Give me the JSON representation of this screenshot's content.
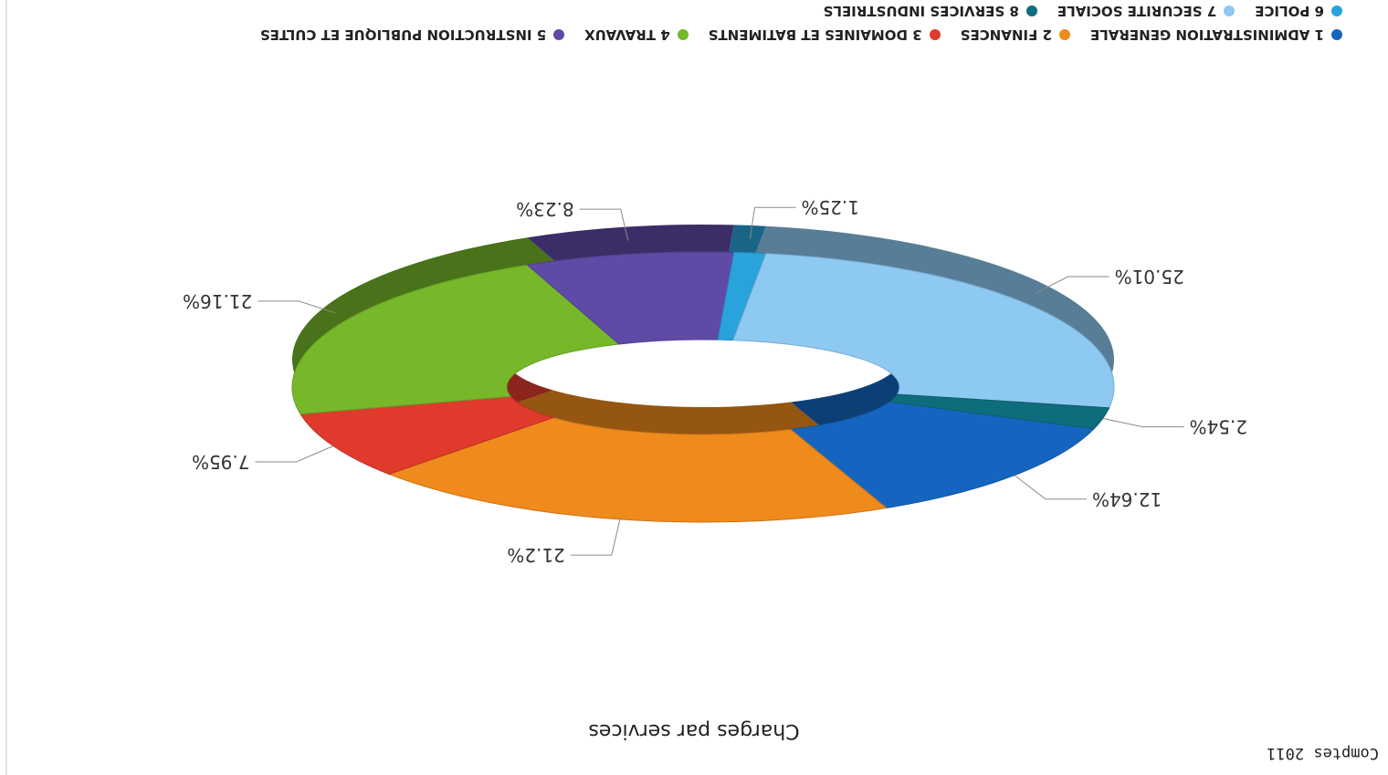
{
  "header": {
    "label": "Comptes 2011"
  },
  "chart_data": {
    "type": "pie",
    "title": "Charges par services",
    "categories": [
      "1 ADMINISTRATION GENERALE",
      "2 FINANCES",
      "3 DOMAINES ET BATIMENTS",
      "4 TRAVAUX",
      "5 INSTRUCTION PUBLIQUE ET CULTES",
      "6 POLICE",
      "7 SECURITE SOCIALE",
      "8 SERVICES INDUSTRIELS"
    ],
    "values": [
      12.64,
      21.2,
      7.95,
      21.16,
      8.23,
      1.25,
      25.01,
      2.54
    ],
    "data_labels": [
      "12.64%",
      "21.2%",
      "7.95%",
      "21.16%",
      "8.23%",
      "1.25%",
      "25.01%",
      "2.54%"
    ],
    "colors": [
      "#1565c0",
      "#ef8a1c",
      "#e03a2c",
      "#76b82a",
      "#5f4aa6",
      "#29a3dc",
      "#8ec9f2",
      "#0e6d7c"
    ],
    "donut": true,
    "legend_position": "bottom",
    "orientation": "rotated 180 degrees"
  }
}
